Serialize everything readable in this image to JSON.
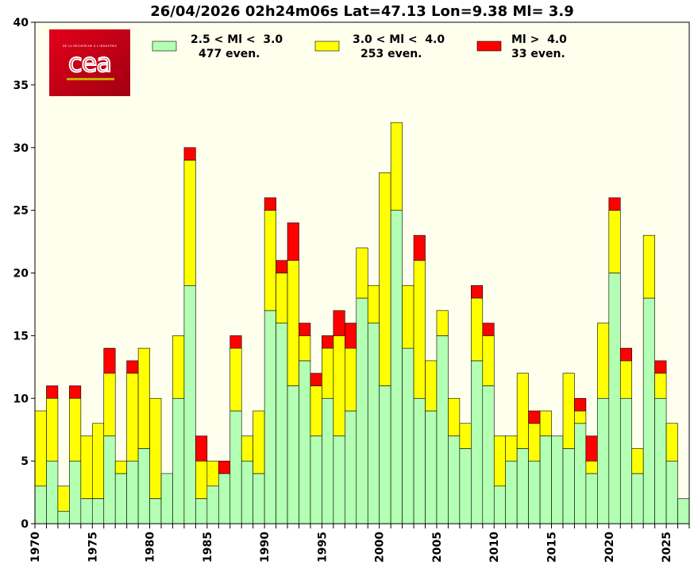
{
  "chart_data": {
    "type": "bar",
    "stacked": true,
    "title": "26/04/2026 02h24m06s Lat=47.13 Lon=9.38 Ml= 3.9",
    "xlabel": "",
    "ylabel": "",
    "xlim": [
      1970,
      2027
    ],
    "ylim": [
      0,
      40
    ],
    "yticks": [
      0,
      5,
      10,
      15,
      20,
      25,
      30,
      35,
      40
    ],
    "xticks": [
      1970,
      1975,
      1980,
      1985,
      1990,
      1995,
      2000,
      2005,
      2010,
      2015,
      2020,
      2025
    ],
    "grid": false,
    "background_color": "#ffffee",
    "legend_position": "top",
    "categories": [
      1970,
      1971,
      1972,
      1973,
      1974,
      1975,
      1976,
      1977,
      1978,
      1979,
      1980,
      1981,
      1982,
      1983,
      1984,
      1985,
      1986,
      1987,
      1988,
      1989,
      1990,
      1991,
      1992,
      1993,
      1994,
      1995,
      1996,
      1997,
      1998,
      1999,
      2000,
      2001,
      2002,
      2003,
      2004,
      2005,
      2006,
      2007,
      2008,
      2009,
      2010,
      2011,
      2012,
      2013,
      2014,
      2015,
      2016,
      2017,
      2018,
      2019,
      2020,
      2021,
      2022,
      2023,
      2024,
      2025,
      2026
    ],
    "series": [
      {
        "name": "2.5 < Ml <  3.0",
        "count_label": "477 even.",
        "color": "#b3ffb3",
        "values": [
          3,
          5,
          1,
          5,
          2,
          2,
          7,
          4,
          5,
          6,
          2,
          4,
          10,
          19,
          2,
          3,
          4,
          9,
          5,
          4,
          17,
          16,
          11,
          13,
          7,
          10,
          7,
          9,
          18,
          16,
          11,
          25,
          14,
          10,
          9,
          15,
          7,
          6,
          13,
          11,
          3,
          5,
          6,
          5,
          7,
          7,
          6,
          8,
          4,
          10,
          20,
          10,
          4,
          18,
          10,
          5,
          2
        ]
      },
      {
        "name": "3.0 < Ml <  4.0",
        "count_label": "253 even.",
        "color": "#ffff00",
        "values": [
          6,
          5,
          2,
          5,
          5,
          6,
          5,
          1,
          7,
          8,
          8,
          0,
          5,
          10,
          3,
          2,
          0,
          5,
          2,
          5,
          8,
          4,
          10,
          2,
          4,
          4,
          8,
          5,
          4,
          3,
          17,
          7,
          5,
          11,
          4,
          2,
          3,
          2,
          5,
          4,
          4,
          2,
          6,
          3,
          2,
          0,
          6,
          1,
          1,
          6,
          5,
          3,
          2,
          5,
          2,
          3,
          0
        ]
      },
      {
        "name": "Ml >  4.0",
        "count_label": "33 even.",
        "color": "#ff0000",
        "values": [
          0,
          1,
          0,
          1,
          0,
          0,
          2,
          0,
          1,
          0,
          0,
          0,
          0,
          1,
          2,
          0,
          1,
          1,
          0,
          0,
          1,
          1,
          3,
          1,
          1,
          1,
          2,
          2,
          0,
          0,
          0,
          0,
          0,
          2,
          0,
          0,
          0,
          0,
          1,
          1,
          0,
          0,
          0,
          1,
          0,
          0,
          0,
          1,
          2,
          0,
          1,
          1,
          0,
          0,
          1,
          0,
          0
        ]
      }
    ]
  },
  "logo": {
    "brand": "cea",
    "tagline": "DE LA RECHERCHE À L'INDUSTRIE",
    "colors": {
      "bg_start": "#e3001b",
      "bg_end": "#a00010",
      "bar": "#c8a800"
    }
  }
}
